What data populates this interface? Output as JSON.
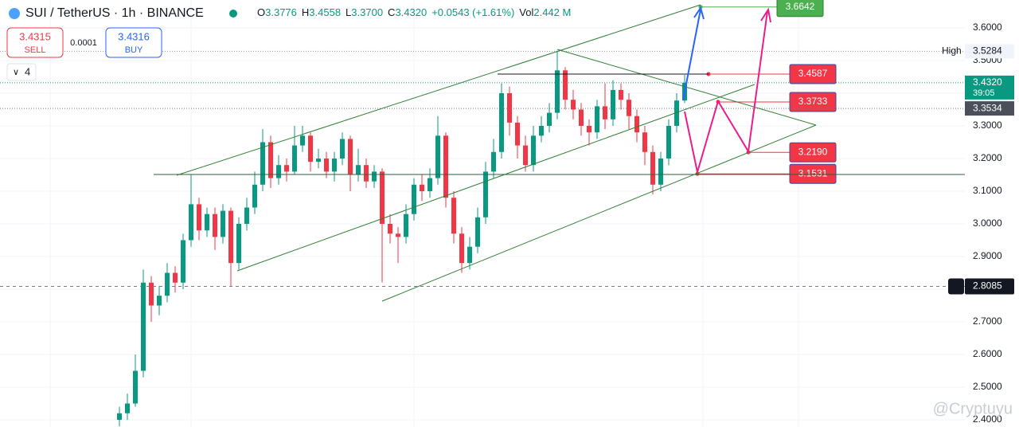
{
  "chart_data": {
    "type": "candlestick",
    "title": "SUI / TetherUS · 1h · BINANCE",
    "legend": {
      "o_label": "O",
      "o": "3.3776",
      "h_label": "H",
      "h": "3.4558",
      "l_label": "L",
      "l": "3.3700",
      "c_label": "C",
      "c": "3.4320",
      "change": "+0.0543 (+1.61%)",
      "vol_label": "Vol",
      "vol": "2.442 M"
    },
    "trade": {
      "sell_price": "3.4315",
      "sell": "SELL",
      "spread": "0.0001",
      "buy_price": "3.4316",
      "buy": "BUY",
      "indicators": "4"
    },
    "categories": [
      null,
      null,
      null,
      null,
      null,
      null,
      null,
      null,
      null,
      null,
      null,
      null,
      null,
      null,
      null,
      null,
      null,
      null,
      null,
      null,
      null,
      null,
      null,
      null,
      null,
      null,
      null,
      null,
      null,
      null,
      null,
      null,
      null,
      null,
      null,
      null,
      null,
      null,
      null,
      null,
      null,
      null,
      null,
      null,
      null,
      null,
      null,
      null,
      null,
      null,
      null,
      null,
      null,
      null,
      null,
      null,
      null,
      null,
      null,
      null,
      null,
      null,
      null,
      null,
      null,
      null,
      null,
      null,
      null,
      null,
      null,
      null
    ],
    "open": [
      2.4,
      2.42,
      2.45,
      2.55,
      2.82,
      2.75,
      2.78,
      2.85,
      2.82,
      2.95,
      3.06,
      2.98,
      3.03,
      2.96,
      3.04,
      2.88,
      3.0,
      3.05,
      3.12,
      3.25,
      3.14,
      3.18,
      3.16,
      3.24,
      3.27,
      3.19,
      3.2,
      3.16,
      3.2,
      3.26,
      3.15,
      3.18,
      3.13,
      3.16,
      3.0,
      2.97,
      2.96,
      3.03,
      3.12,
      3.1,
      3.14,
      3.27,
      3.08,
      2.97,
      2.88,
      2.93,
      3.02,
      3.16,
      3.22,
      3.4,
      3.31,
      3.24,
      3.18,
      3.27,
      3.3,
      3.34,
      3.47,
      3.38,
      3.35,
      3.3,
      3.28,
      3.36,
      3.32,
      3.41,
      3.38,
      3.33,
      3.28,
      3.22,
      3.12,
      3.2,
      3.3,
      3.3776
    ],
    "high": [
      2.44,
      2.48,
      2.6,
      2.86,
      2.84,
      2.81,
      2.88,
      2.87,
      2.97,
      3.15,
      3.08,
      3.05,
      3.05,
      3.06,
      3.05,
      3.02,
      3.08,
      3.16,
      3.29,
      3.27,
      3.21,
      3.2,
      3.3,
      3.3,
      3.28,
      3.23,
      3.22,
      3.22,
      3.28,
      3.27,
      3.23,
      3.2,
      3.18,
      3.17,
      3.03,
      2.99,
      3.06,
      3.14,
      3.15,
      3.17,
      3.33,
      3.28,
      3.1,
      2.99,
      2.96,
      3.05,
      3.19,
      3.26,
      3.43,
      3.42,
      3.33,
      3.27,
      3.3,
      3.33,
      3.37,
      3.53,
      3.48,
      3.41,
      3.37,
      3.32,
      3.38,
      3.43,
      3.44,
      3.43,
      3.4,
      3.35,
      3.3,
      3.24,
      3.22,
      3.32,
      3.4,
      3.4558
    ],
    "low": [
      2.38,
      2.4,
      2.44,
      2.53,
      2.7,
      2.72,
      2.76,
      2.79,
      2.8,
      2.93,
      2.95,
      2.96,
      2.92,
      2.94,
      2.81,
      2.86,
      2.98,
      3.03,
      3.1,
      3.11,
      3.12,
      3.13,
      3.15,
      3.22,
      3.16,
      3.17,
      3.14,
      3.13,
      3.18,
      3.1,
      3.13,
      3.11,
      3.11,
      2.82,
      2.94,
      2.88,
      2.94,
      3.01,
      3.07,
      3.08,
      3.12,
      3.05,
      2.94,
      2.85,
      2.86,
      2.91,
      3.0,
      3.14,
      3.2,
      3.27,
      3.2,
      3.16,
      3.16,
      3.25,
      3.28,
      3.32,
      3.35,
      3.32,
      3.27,
      3.24,
      3.26,
      3.29,
      3.3,
      3.35,
      3.29,
      3.25,
      3.18,
      3.09,
      3.1,
      3.18,
      3.28,
      3.37
    ],
    "close": [
      2.42,
      2.45,
      2.55,
      2.82,
      2.75,
      2.78,
      2.85,
      2.82,
      2.95,
      3.06,
      2.98,
      3.03,
      2.96,
      3.04,
      2.88,
      3.0,
      3.05,
      3.12,
      3.25,
      3.14,
      3.18,
      3.16,
      3.24,
      3.27,
      3.19,
      3.2,
      3.16,
      3.2,
      3.26,
      3.15,
      3.18,
      3.13,
      3.16,
      3.0,
      2.97,
      2.96,
      3.03,
      3.12,
      3.1,
      3.14,
      3.27,
      3.08,
      2.97,
      2.88,
      2.93,
      3.02,
      3.16,
      3.22,
      3.4,
      3.31,
      3.24,
      3.18,
      3.27,
      3.3,
      3.34,
      3.47,
      3.38,
      3.35,
      3.3,
      3.28,
      3.36,
      3.32,
      3.41,
      3.38,
      3.33,
      3.28,
      3.22,
      3.12,
      3.2,
      3.3,
      3.3776,
      3.432
    ],
    "up_color": "#089981",
    "down_color": "#f23645",
    "ylim": [
      2.378,
      3.6854
    ],
    "yticks": [
      {
        "value": 2.4,
        "label": "2.4000"
      },
      {
        "value": 2.5,
        "label": "2.5000"
      },
      {
        "value": 2.6,
        "label": "2.6000"
      },
      {
        "value": 2.7,
        "label": "2.7000"
      },
      {
        "value": 2.8,
        "label": "2.8000"
      },
      {
        "value": 2.9,
        "label": "2.9000"
      },
      {
        "value": 3.0,
        "label": "3.0000"
      },
      {
        "value": 3.1,
        "label": "3.1000"
      },
      {
        "value": 3.2,
        "label": "3.2000"
      },
      {
        "value": 3.3,
        "label": "3.3000"
      },
      {
        "value": 3.4,
        "label": "3.4000"
      },
      {
        "value": 3.5,
        "label": "3.5000"
      },
      {
        "value": 3.6,
        "label": "3.6000"
      }
    ],
    "grid": true,
    "price_labels": [
      {
        "value": 3.6642,
        "color": "#4caf50"
      },
      {
        "value": 3.4587,
        "color": "#f23645"
      },
      {
        "value": 3.3733,
        "color": "#f23645"
      },
      {
        "value": {
          "value": 3.219,
          "label": "3.2190"
        },
        "color": "#f23645"
      },
      {
        "value": 3.1531,
        "color": "#f23645"
      }
    ],
    "current_price": {
      "value": 3.432,
      "label": "3.4320",
      "countdown": "39:05",
      "color": "#089981"
    },
    "prev_price": {
      "value": 3.3534,
      "label": "3.3534"
    },
    "high_marker": {
      "name": "High",
      "value": 3.5284,
      "label": "3.5284"
    },
    "crosshair": {
      "value": 2.8085,
      "label": "2.8085"
    },
    "watermark": "@Cryptuyu"
  }
}
